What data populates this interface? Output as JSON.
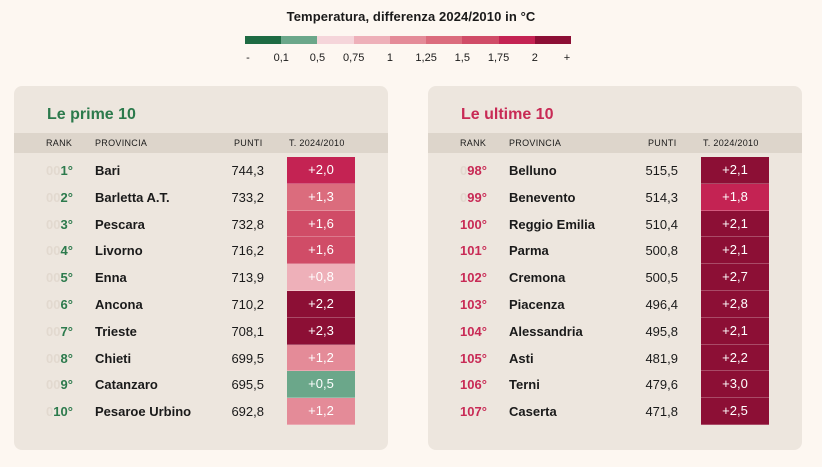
{
  "legend": {
    "title": "Temperatura, differenza 2024/2010 in °C",
    "colors": [
      "#1e6b43",
      "#6ba78a",
      "#f5d5da",
      "#eeb0b9",
      "#e48b98",
      "#db6c7d",
      "#d04c67",
      "#c42353",
      "#8c0f35"
    ],
    "labels": [
      "-",
      "0,1",
      "0,5",
      "0,75",
      "1",
      "1,25",
      "1,5",
      "1,75",
      "2",
      "+"
    ]
  },
  "left": {
    "title": "Le prime 10",
    "headers": {
      "rank": "RANK",
      "provincia": "PROVINCIA",
      "punti": "PUNTI",
      "temp": "T. 2024/2010"
    },
    "rows": [
      {
        "pad": "00",
        "rank": "1°",
        "provincia": "Bari",
        "punti": "744,3",
        "temp": "+2,0",
        "color": "#c42353"
      },
      {
        "pad": "00",
        "rank": "2°",
        "provincia": "Barletta A.T.",
        "punti": "733,2",
        "temp": "+1,3",
        "color": "#db6c7d"
      },
      {
        "pad": "00",
        "rank": "3°",
        "provincia": "Pescara",
        "punti": "732,8",
        "temp": "+1,6",
        "color": "#d04c67"
      },
      {
        "pad": "00",
        "rank": "4°",
        "provincia": "Livorno",
        "punti": "716,2",
        "temp": "+1,6",
        "color": "#d04c67"
      },
      {
        "pad": "00",
        "rank": "5°",
        "provincia": "Enna",
        "punti": "713,9",
        "temp": "+0,8",
        "color": "#eeb0b9"
      },
      {
        "pad": "00",
        "rank": "6°",
        "provincia": "Ancona",
        "punti": "710,2",
        "temp": "+2,2",
        "color": "#8c0f35"
      },
      {
        "pad": "00",
        "rank": "7°",
        "provincia": "Trieste",
        "punti": "708,1",
        "temp": "+2,3",
        "color": "#8c0f35"
      },
      {
        "pad": "00",
        "rank": "8°",
        "provincia": "Chieti",
        "punti": "699,5",
        "temp": "+1,2",
        "color": "#e48b98"
      },
      {
        "pad": "00",
        "rank": "9°",
        "provincia": "Catanzaro",
        "punti": "695,5",
        "temp": "+0,5",
        "color": "#6ba78a"
      },
      {
        "pad": "0",
        "rank": "10°",
        "provincia": "Pesaroe Urbino",
        "punti": "692,8",
        "temp": "+1,2",
        "color": "#e48b98"
      }
    ]
  },
  "right": {
    "title": "Le ultime 10",
    "headers": {
      "rank": "RANK",
      "provincia": "PROVINCIA",
      "punti": "PUNTI",
      "temp": "T. 2024/2010"
    },
    "rows": [
      {
        "pad": "0",
        "rank": "98°",
        "provincia": "Belluno",
        "punti": "515,5",
        "temp": "+2,1",
        "color": "#8c0f35"
      },
      {
        "pad": "0",
        "rank": "99°",
        "provincia": "Benevento",
        "punti": "514,3",
        "temp": "+1,8",
        "color": "#c42353"
      },
      {
        "pad": "",
        "rank": "100°",
        "provincia": "Reggio Emilia",
        "punti": "510,4",
        "temp": "+2,1",
        "color": "#8c0f35"
      },
      {
        "pad": "",
        "rank": "101°",
        "provincia": "Parma",
        "punti": "500,8",
        "temp": "+2,1",
        "color": "#8c0f35"
      },
      {
        "pad": "",
        "rank": "102°",
        "provincia": "Cremona",
        "punti": "500,5",
        "temp": "+2,7",
        "color": "#8c0f35"
      },
      {
        "pad": "",
        "rank": "103°",
        "provincia": "Piacenza",
        "punti": "496,4",
        "temp": "+2,8",
        "color": "#8c0f35"
      },
      {
        "pad": "",
        "rank": "104°",
        "provincia": "Alessandria",
        "punti": "495,8",
        "temp": "+2,1",
        "color": "#8c0f35"
      },
      {
        "pad": "",
        "rank": "105°",
        "provincia": "Asti",
        "punti": "481,9",
        "temp": "+2,2",
        "color": "#8c0f35"
      },
      {
        "pad": "",
        "rank": "106°",
        "provincia": "Terni",
        "punti": "479,6",
        "temp": "+3,0",
        "color": "#8c0f35"
      },
      {
        "pad": "",
        "rank": "107°",
        "provincia": "Caserta",
        "punti": "471,8",
        "temp": "+2,5",
        "color": "#8c0f35"
      }
    ]
  }
}
